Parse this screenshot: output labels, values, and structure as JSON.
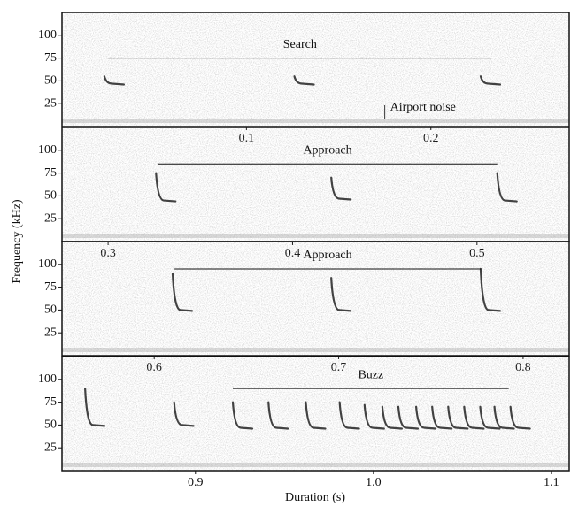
{
  "chart_data": [
    {
      "type": "spectrogram",
      "ylabel": "Frequency (kHz)",
      "xlim": [
        0,
        0.275
      ],
      "ylim": [
        0,
        125
      ],
      "xticks": [
        0.1,
        0.2
      ],
      "yticks": [
        25,
        50,
        75,
        100
      ],
      "x": [
        0.023,
        0.126,
        0.227
      ],
      "values": [
        55,
        55,
        55
      ],
      "end_values": [
        47,
        47,
        47
      ],
      "annotation": {
        "text": "Search",
        "x": [
          0.025,
          0.233
        ],
        "y": 75
      },
      "noise_label": {
        "text": "Airport noise",
        "x": 0.175
      }
    },
    {
      "type": "spectrogram",
      "xlim": [
        0.275,
        0.55
      ],
      "ylim": [
        0,
        125
      ],
      "xticks": [
        0.3,
        0.4,
        0.5
      ],
      "yticks": [
        25,
        50,
        75,
        100
      ],
      "x": [
        0.326,
        0.421,
        0.511
      ],
      "values": [
        75,
        70,
        75
      ],
      "end_values": [
        45,
        47,
        45
      ],
      "annotation": {
        "text": "Approach",
        "x": [
          0.327,
          0.511
        ],
        "y": 85
      }
    },
    {
      "type": "spectrogram",
      "xlim": [
        0.55,
        0.825
      ],
      "ylim": [
        0,
        125
      ],
      "xticks": [
        0.6,
        0.7,
        0.8
      ],
      "yticks": [
        25,
        50,
        75,
        100
      ],
      "x": [
        0.61,
        0.696,
        0.777
      ],
      "values": [
        90,
        85,
        95
      ],
      "end_values": [
        50,
        50,
        50
      ],
      "annotation": {
        "text": "Approach",
        "x": [
          0.611,
          0.777
        ],
        "y": 95
      }
    },
    {
      "type": "spectrogram",
      "xlabel": "Duration (s)",
      "xlim": [
        0.825,
        1.11
      ],
      "ylim": [
        0,
        125
      ],
      "xticks": [
        0.9,
        {
          "value": 1,
          "label": "1.0"
        },
        1.1
      ],
      "yticks": [
        25,
        50,
        75,
        100
      ],
      "x": [
        0.838,
        0.888,
        0.921,
        0.941,
        0.962,
        0.981,
        0.995,
        1.005,
        1.014,
        1.024,
        1.033,
        1.042,
        1.051,
        1.06,
        1.068,
        1.077
      ],
      "values": [
        90,
        75,
        75,
        75,
        75,
        75,
        72,
        70,
        70,
        70,
        70,
        70,
        70,
        70,
        70,
        70
      ],
      "end_values": [
        50,
        50,
        47,
        47,
        47,
        47,
        47,
        47,
        47,
        47,
        47,
        47,
        47,
        47,
        47,
        47
      ],
      "annotation": {
        "text": "Buzz",
        "x": [
          0.921,
          1.076
        ],
        "y": 90
      }
    }
  ]
}
